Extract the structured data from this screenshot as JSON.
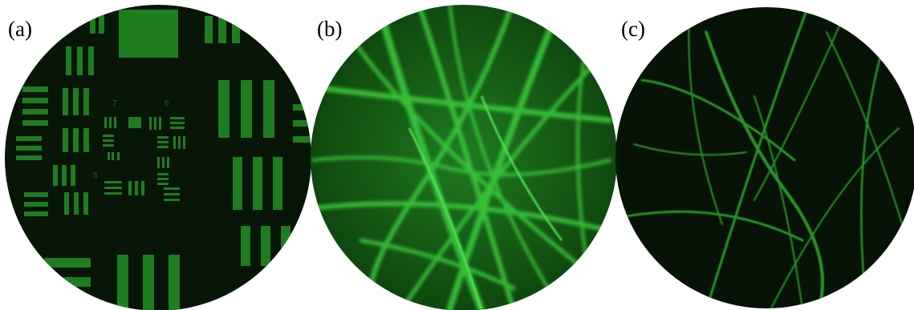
{
  "panels": [
    {
      "label": "(a)"
    },
    {
      "label": "(b)"
    },
    {
      "label": "(c)"
    }
  ],
  "target_numbers": [
    "7",
    "6",
    "5"
  ]
}
